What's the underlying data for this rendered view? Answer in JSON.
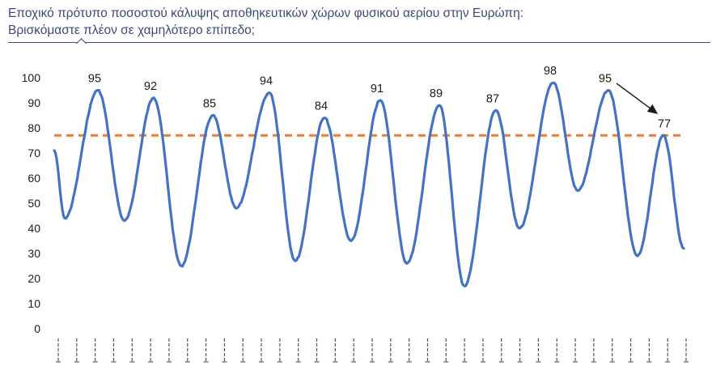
{
  "title_line1": "Εποχικό πρότυπο ποσοστού κάλυψης αποθηκευτικών χώρων φυσικού αερίου στην Ευρώπη:",
  "title_line2": "Βρισκόμαστε πλέον σε χαμηλότερο επίπεδο;",
  "chart_data": {
    "type": "line",
    "title": "Εποχικό πρότυπο ποσοστού κάλυψης αποθηκευτικών χώρων φυσικού αερίου στην Ευρώπη: Βρισκόμαστε πλέον σε χαμηλότερο επίπεδο;",
    "xlabel": "",
    "ylabel": "",
    "ylim": [
      0,
      100
    ],
    "yticks": [
      0,
      10,
      20,
      30,
      40,
      50,
      60,
      70,
      80,
      90,
      100
    ],
    "grid": false,
    "line_color": "#4472c4",
    "reference_line": {
      "value": 77,
      "style": "dashed",
      "color": "#ed7d31"
    },
    "series": [
      {
        "values": [
          71,
          44,
          95,
          43,
          92,
          25,
          85,
          48,
          94,
          27,
          84,
          35,
          91,
          26,
          89,
          17,
          87,
          40,
          98,
          55,
          95,
          29,
          77,
          32
        ]
      }
    ],
    "peak_labels": [
      {
        "value": 95,
        "label": "95"
      },
      {
        "value": 92,
        "label": "92"
      },
      {
        "value": 85,
        "label": "85"
      },
      {
        "value": 94,
        "label": "94"
      },
      {
        "value": 84,
        "label": "84"
      },
      {
        "value": 91,
        "label": "91"
      },
      {
        "value": 89,
        "label": "89"
      },
      {
        "value": 87,
        "label": "87"
      },
      {
        "value": 98,
        "label": "98"
      },
      {
        "value": 95,
        "label": "95"
      },
      {
        "value": 77,
        "label": "77"
      }
    ],
    "annotation": "arrow from 95 to 77",
    "x_tick_count": 35
  }
}
